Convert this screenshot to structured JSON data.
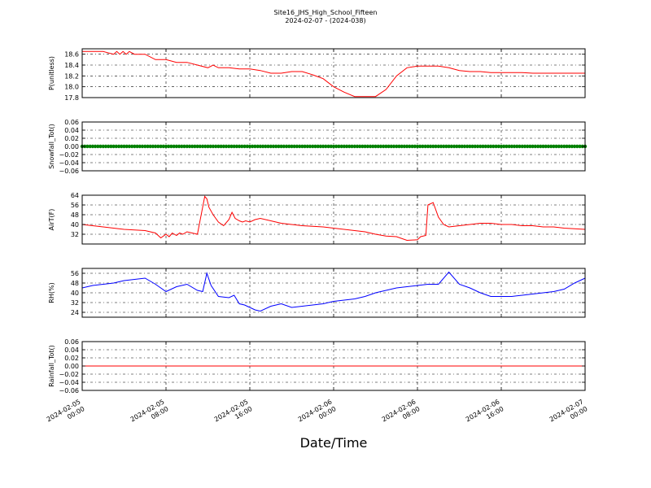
{
  "figure": {
    "title_line1": "Site16_JHS_High_School_Fifteen",
    "title_line2": "2024-02-07 - (2024-038)",
    "xlabel": "Date/Time"
  },
  "chart_data": [
    {
      "type": "line",
      "ylabel": "P(unitless)",
      "ylim": [
        17.8,
        18.7
      ],
      "yticks": [
        "17.8",
        "18.0",
        "18.2",
        "18.4",
        "18.6"
      ],
      "color": "#ff0000",
      "grid": true,
      "x": [
        0,
        2,
        3,
        3.3,
        3.6,
        3.9,
        4.2,
        4.5,
        5,
        6,
        7,
        8,
        9,
        10,
        11,
        12,
        12.5,
        13,
        14,
        15,
        16,
        17,
        18,
        19,
        20,
        21,
        22,
        23,
        24,
        25,
        26,
        27,
        28,
        29,
        30,
        31,
        32,
        33,
        34,
        35,
        36,
        37,
        38,
        39,
        40,
        41,
        42,
        43,
        44,
        45,
        46,
        47,
        48
      ],
      "y": [
        18.65,
        18.65,
        18.6,
        18.65,
        18.6,
        18.65,
        18.6,
        18.65,
        18.6,
        18.6,
        18.5,
        18.5,
        18.45,
        18.45,
        18.4,
        18.35,
        18.4,
        18.35,
        18.35,
        18.33,
        18.33,
        18.3,
        18.25,
        18.25,
        18.28,
        18.28,
        18.22,
        18.15,
        18.0,
        17.9,
        17.82,
        17.82,
        17.82,
        17.95,
        18.2,
        18.35,
        18.38,
        18.38,
        18.38,
        18.35,
        18.3,
        18.28,
        18.28,
        18.26,
        18.26,
        18.26,
        18.26,
        18.25,
        18.25,
        18.25,
        18.25,
        18.25,
        18.25
      ]
    },
    {
      "type": "scatter",
      "ylabel": "Snowfall_Tot()",
      "ylim": [
        -0.06,
        0.06
      ],
      "yticks": [
        "−0.06",
        "−0.04",
        "−0.02",
        "0.00",
        "0.02",
        "0.04",
        "0.06"
      ],
      "color": "#008000",
      "grid": true,
      "x_start": 0,
      "x_end": 48,
      "x_step": 0.25,
      "constant": 0.0
    },
    {
      "type": "line",
      "ylabel": "AirT(F)",
      "ylim": [
        24,
        64
      ],
      "yticks": [
        "32",
        "40",
        "48",
        "56",
        "64"
      ],
      "color": "#ff0000",
      "grid": true,
      "x": [
        0,
        1,
        2,
        3,
        4,
        5,
        6,
        7,
        7.5,
        8,
        8.3,
        8.6,
        9,
        9.3,
        9.6,
        10,
        10.5,
        11,
        11.7,
        11.9,
        12.1,
        12.5,
        13,
        13.5,
        14,
        14.3,
        14.6,
        15,
        15.3,
        15.6,
        16,
        16.5,
        17,
        18,
        19,
        20,
        21,
        22,
        23,
        24,
        25,
        26,
        27,
        28,
        29,
        30,
        31,
        32,
        32.3,
        32.8,
        33,
        33.5,
        34,
        34.5,
        35,
        36,
        37,
        38,
        39,
        40,
        41,
        42,
        43,
        44,
        45,
        46,
        47,
        48
      ],
      "y": [
        40,
        39,
        38,
        37,
        36,
        35.5,
        35,
        33,
        29,
        32,
        30,
        33,
        31,
        33,
        32,
        34,
        33,
        32,
        63,
        61,
        54,
        48,
        42,
        39,
        44,
        50,
        45,
        43,
        42,
        43,
        42,
        44,
        45,
        43,
        41,
        40,
        39,
        38.5,
        38,
        37,
        36,
        35,
        34,
        32,
        30.5,
        30,
        27,
        27.5,
        30,
        31,
        56,
        58,
        46,
        40,
        38,
        39,
        40,
        41,
        41,
        40,
        40,
        39,
        39,
        38,
        38,
        37,
        36.5,
        36
      ]
    },
    {
      "type": "line",
      "ylabel": "RH(%)",
      "ylim": [
        20,
        60
      ],
      "yticks": [
        "24",
        "32",
        "40",
        "48",
        "56"
      ],
      "color": "#0000ff",
      "grid": true,
      "x": [
        0,
        1,
        2,
        3,
        4,
        5,
        6,
        7,
        8,
        9,
        10,
        11,
        11.5,
        11.9,
        12.3,
        13,
        14,
        14.5,
        15,
        15.5,
        16,
        16.5,
        17,
        18,
        19,
        20,
        21,
        22,
        23,
        24,
        25,
        26,
        27,
        28,
        29,
        30,
        31,
        32,
        33,
        34,
        35,
        36,
        37,
        38,
        39,
        40,
        41,
        42,
        43,
        44,
        45,
        46,
        47,
        48
      ],
      "y": [
        44,
        46,
        47,
        48,
        50,
        51,
        52,
        47,
        41,
        45,
        47,
        42,
        41,
        56,
        46,
        37,
        36,
        38,
        31,
        30,
        28,
        26,
        25,
        29,
        31,
        28,
        29,
        30,
        31,
        33,
        34,
        35,
        37,
        40,
        42,
        44,
        45,
        46,
        47,
        47,
        57,
        47,
        44,
        40,
        37,
        37,
        37,
        38,
        39,
        40,
        41,
        43,
        48,
        52
      ]
    },
    {
      "type": "line",
      "ylabel": "Rainfall_Tot()",
      "ylim": [
        -0.06,
        0.06
      ],
      "yticks": [
        "−0.06",
        "−0.04",
        "−0.02",
        "0.00",
        "0.02",
        "0.04",
        "0.06"
      ],
      "color": "#ff0000",
      "grid": true,
      "x": [
        0,
        48
      ],
      "y": [
        0.0,
        0.0
      ]
    }
  ],
  "xaxis": {
    "ticks": [
      {
        "line1": "2024-02-05",
        "line2": "00:00"
      },
      {
        "line1": "2024-02-05",
        "line2": "08:00"
      },
      {
        "line1": "2024-02-05",
        "line2": "16:00"
      },
      {
        "line1": "2024-02-06",
        "line2": "00:00"
      },
      {
        "line1": "2024-02-06",
        "line2": "08:00"
      },
      {
        "line1": "2024-02-06",
        "line2": "16:00"
      },
      {
        "line1": "2024-02-07",
        "line2": "00:00"
      }
    ]
  }
}
